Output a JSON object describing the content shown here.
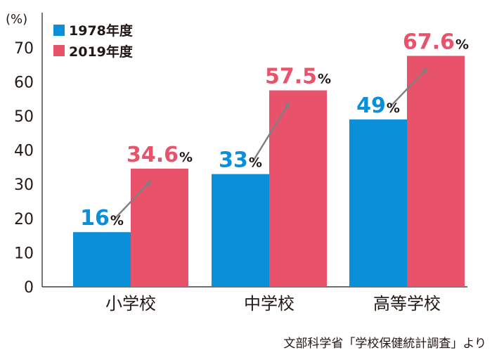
{
  "chart_data": {
    "type": "bar",
    "unit_label": "(%)",
    "categories": [
      "小学校",
      "中学校",
      "高等学校"
    ],
    "series": [
      {
        "name": "1978年度",
        "values": [
          16,
          33,
          49
        ],
        "color": "#0a8fd8",
        "labels": [
          {
            "num": "16",
            "pct": "%"
          },
          {
            "num": "33",
            "pct": "%"
          },
          {
            "num": "49",
            "pct": "%"
          }
        ]
      },
      {
        "name": "2019年度",
        "values": [
          34.6,
          57.5,
          67.6
        ],
        "color": "#e8536b",
        "labels": [
          {
            "num": "34.6",
            "pct": "%"
          },
          {
            "num": "57.5",
            "pct": "%"
          },
          {
            "num": "67.6",
            "pct": "%"
          }
        ]
      }
    ],
    "yticks": [
      "0",
      "10",
      "20",
      "30",
      "40",
      "50",
      "60",
      "70"
    ],
    "ylim": [
      0,
      75
    ],
    "legend": "top-left",
    "grid": false,
    "arrow_color": "#7f7f7f",
    "source": "文部科学省「学校保健統計調査」より"
  }
}
